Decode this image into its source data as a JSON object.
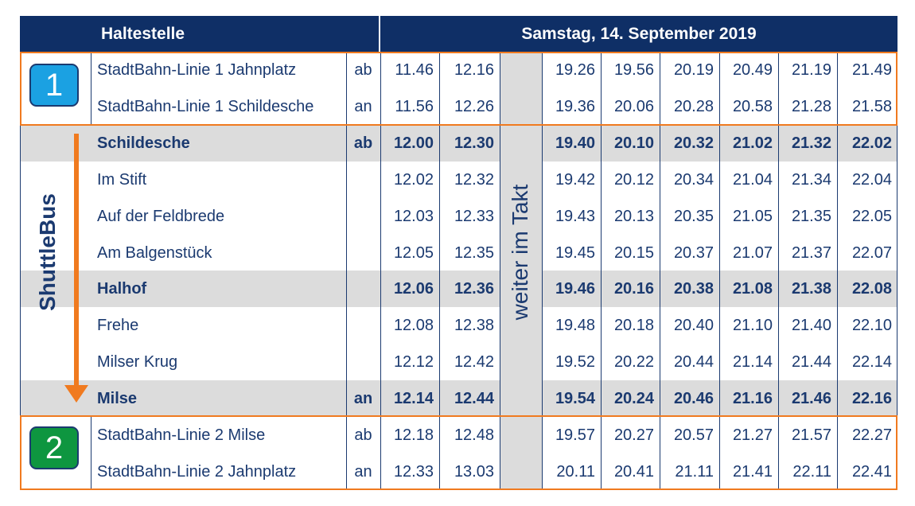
{
  "header": {
    "stop_label": "Haltestelle",
    "date": "Samstag, 14. September 2019"
  },
  "takt_text": "weiter im Takt",
  "shuttle_label": "ShuttleBus",
  "colors": {
    "navy": "#0f2f66",
    "orange": "#f07a1f",
    "grey": "#dcdcdc",
    "badge1": "#1ba1e2",
    "badge2": "#0e9640"
  },
  "badges": [
    {
      "number": "1"
    },
    {
      "number": "2"
    }
  ],
  "rows": [
    {
      "stop": "StadtBahn-Linie 1 Jahnplatz",
      "dir": "ab",
      "bold": false,
      "shaded": false,
      "times": [
        "11.46",
        "12.16",
        "19.26",
        "19.56",
        "20.19",
        "20.49",
        "21.19",
        "21.49"
      ]
    },
    {
      "stop": "StadtBahn-Linie 1 Schildesche",
      "dir": "an",
      "bold": false,
      "shaded": false,
      "times": [
        "11.56",
        "12.26",
        "19.36",
        "20.06",
        "20.28",
        "20.58",
        "21.28",
        "21.58"
      ]
    },
    {
      "stop": "Schildesche",
      "dir": "ab",
      "bold": true,
      "shaded": true,
      "times": [
        "12.00",
        "12.30",
        "19.40",
        "20.10",
        "20.32",
        "21.02",
        "21.32",
        "22.02"
      ]
    },
    {
      "stop": "Im Stift",
      "dir": "",
      "bold": false,
      "shaded": false,
      "times": [
        "12.02",
        "12.32",
        "19.42",
        "20.12",
        "20.34",
        "21.04",
        "21.34",
        "22.04"
      ]
    },
    {
      "stop": "Auf der Feldbrede",
      "dir": "",
      "bold": false,
      "shaded": false,
      "times": [
        "12.03",
        "12.33",
        "19.43",
        "20.13",
        "20.35",
        "21.05",
        "21.35",
        "22.05"
      ]
    },
    {
      "stop": "Am Balgenstück",
      "dir": "",
      "bold": false,
      "shaded": false,
      "times": [
        "12.05",
        "12.35",
        "19.45",
        "20.15",
        "20.37",
        "21.07",
        "21.37",
        "22.07"
      ]
    },
    {
      "stop": "Halhof",
      "dir": "",
      "bold": true,
      "shaded": true,
      "times": [
        "12.06",
        "12.36",
        "19.46",
        "20.16",
        "20.38",
        "21.08",
        "21.38",
        "22.08"
      ]
    },
    {
      "stop": "Frehe",
      "dir": "",
      "bold": false,
      "shaded": false,
      "times": [
        "12.08",
        "12.38",
        "19.48",
        "20.18",
        "20.40",
        "21.10",
        "21.40",
        "22.10"
      ]
    },
    {
      "stop": "Milser Krug",
      "dir": "",
      "bold": false,
      "shaded": false,
      "times": [
        "12.12",
        "12.42",
        "19.52",
        "20.22",
        "20.44",
        "21.14",
        "21.44",
        "22.14"
      ]
    },
    {
      "stop": "Milse",
      "dir": "an",
      "bold": true,
      "shaded": true,
      "times": [
        "12.14",
        "12.44",
        "19.54",
        "20.24",
        "20.46",
        "21.16",
        "21.46",
        "22.16"
      ]
    },
    {
      "stop": "StadtBahn-Linie 2 Milse",
      "dir": "ab",
      "bold": false,
      "shaded": false,
      "times": [
        "12.18",
        "12.48",
        "19.57",
        "20.27",
        "20.57",
        "21.27",
        "21.57",
        "22.27"
      ]
    },
    {
      "stop": "StadtBahn-Linie 2 Jahnplatz",
      "dir": "an",
      "bold": false,
      "shaded": false,
      "times": [
        "12.33",
        "13.03",
        "20.11",
        "20.41",
        "21.11",
        "21.41",
        "22.11",
        "22.41"
      ]
    }
  ]
}
